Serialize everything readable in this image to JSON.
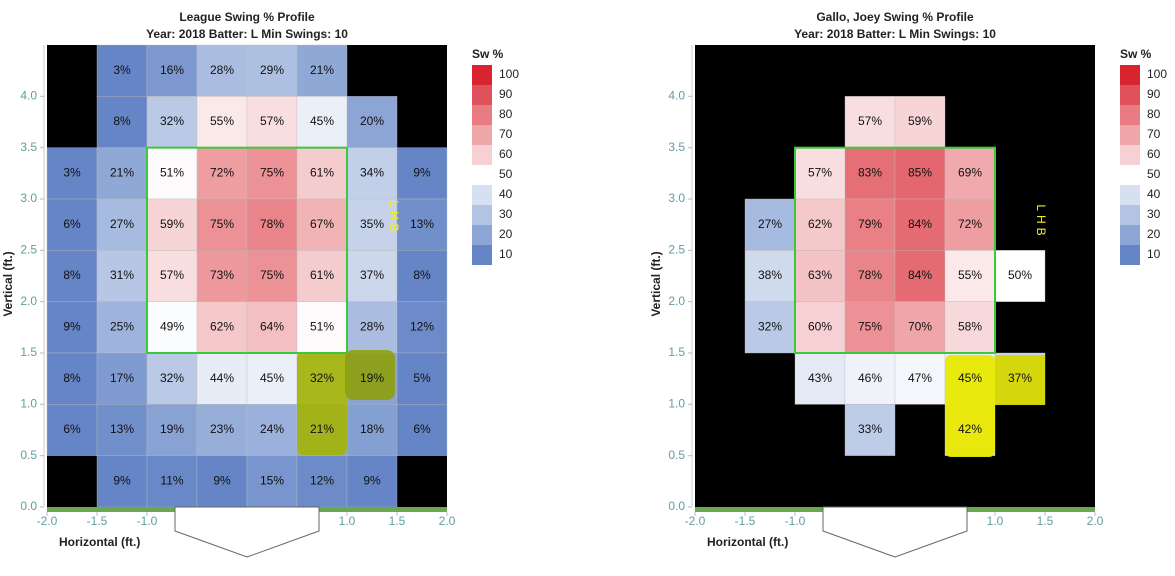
{
  "chart_data": [
    {
      "type": "heatmap",
      "title": "League Swing % Profile",
      "subtitle": "Year: 2018 Batter: L Min Swings: 10",
      "x_label": "Horizontal (ft.)",
      "y_label": "Vertical (ft.)",
      "xlim": [
        -2,
        2
      ],
      "ylim": [
        0,
        4.5
      ],
      "xticks": [
        {
          "value": -2,
          "label": "-2.0"
        },
        -1.5,
        {
          "value": -1,
          "label": "-1.0"
        },
        {
          "value": 1,
          "label": "1.0"
        },
        1.5,
        {
          "value": 2,
          "label": "2.0"
        }
      ],
      "yticks": [
        {
          "value": 0,
          "label": "0.0"
        },
        0.5,
        {
          "value": 1,
          "label": "1.0"
        },
        1.5,
        {
          "value": 2,
          "label": "2.0"
        },
        2.5,
        {
          "value": 3,
          "label": "3.0"
        },
        3.5,
        {
          "value": 4,
          "label": "4.0"
        }
      ],
      "x_edges": [
        -2,
        -1.5,
        -1,
        -0.5,
        0,
        0.5,
        1,
        1.5,
        2
      ],
      "y_edges": [
        4.5,
        4,
        3.5,
        3,
        2.5,
        2,
        1.5,
        1,
        0.5,
        0
      ],
      "values": [
        [
          null,
          3,
          16,
          28,
          29,
          21,
          null,
          null
        ],
        [
          null,
          8,
          32,
          55,
          57,
          45,
          20,
          null
        ],
        [
          3,
          21,
          51,
          72,
          75,
          61,
          34,
          9
        ],
        [
          6,
          27,
          59,
          75,
          78,
          67,
          35,
          13
        ],
        [
          8,
          31,
          57,
          73,
          75,
          61,
          37,
          8
        ],
        [
          9,
          25,
          49,
          62,
          64,
          51,
          28,
          12
        ],
        [
          8,
          17,
          32,
          44,
          45,
          32,
          19,
          5
        ],
        [
          6,
          13,
          19,
          23,
          24,
          21,
          18,
          6
        ],
        [
          null,
          9,
          11,
          9,
          15,
          12,
          9,
          null
        ]
      ],
      "value_labels": [
        [
          null,
          "3%",
          "16%",
          "28%",
          "29%",
          "21%",
          null,
          null
        ],
        [
          null,
          "8%",
          "32%",
          "55%",
          "57%",
          "45%",
          "20%",
          null
        ],
        [
          "3%",
          "21%",
          "51%",
          "72%",
          "75%",
          "61%",
          "34%",
          "9%"
        ],
        [
          "6%",
          "27%",
          "59%",
          "75%",
          "78%",
          "67%",
          "35%",
          "13%"
        ],
        [
          "8%",
          "31%",
          "57%",
          "73%",
          "75%",
          "61%",
          "37%",
          "8%"
        ],
        [
          "9%",
          "25%",
          "49%",
          "62%",
          "64%",
          "51%",
          "28%",
          "12%"
        ],
        [
          "8%",
          "17%",
          "32%",
          "44%",
          "45%",
          "32%",
          "19%",
          "5%"
        ],
        [
          "6%",
          "13%",
          "19%",
          "23%",
          "24%",
          "21%",
          "18%",
          "6%"
        ],
        [
          null,
          "9%",
          "11%",
          "9%",
          "15%",
          "12%",
          "9%",
          null
        ]
      ],
      "strike_zone": {
        "x": [
          -1,
          1
        ],
        "y": [
          1.5,
          3.5
        ],
        "color": "#3cc83c"
      },
      "annotation": "LHB",
      "background": "#000000",
      "colorbar": {
        "title": "Sw %",
        "ticks": [
          100,
          90,
          80,
          70,
          60,
          50,
          40,
          30,
          20,
          10
        ],
        "colors": [
          "#d9232e",
          "#e0525b",
          "#e87c82",
          "#efa6a9",
          "#f6d0d2",
          "#ffffff",
          "#d7e0f0",
          "#b2c3e3",
          "#8ca5d5",
          "#6585c6"
        ]
      }
    },
    {
      "type": "heatmap",
      "title": "Gallo, Joey Swing % Profile",
      "subtitle": "Year: 2018 Batter: L Min Swings: 10",
      "x_label": "Horizontal (ft.)",
      "y_label": "Vertical (ft.)",
      "xlim": [
        -2,
        2
      ],
      "ylim": [
        0,
        4.5
      ],
      "xticks": [
        {
          "value": -2,
          "label": "-2.0"
        },
        -1.5,
        {
          "value": -1,
          "label": "-1.0"
        },
        {
          "value": 1,
          "label": "1.0"
        },
        1.5,
        {
          "value": 2,
          "label": "2.0"
        }
      ],
      "yticks": [
        {
          "value": 0,
          "label": "0.0"
        },
        0.5,
        {
          "value": 1,
          "label": "1.0"
        },
        1.5,
        {
          "value": 2,
          "label": "2.0"
        },
        2.5,
        {
          "value": 3,
          "label": "3.0"
        },
        3.5,
        {
          "value": 4,
          "label": "4.0"
        }
      ],
      "x_edges": [
        -2,
        -1.5,
        -1,
        -0.5,
        0,
        0.5,
        1,
        1.5,
        2
      ],
      "y_edges": [
        4.5,
        4,
        3.5,
        3,
        2.5,
        2,
        1.5,
        1,
        0.5,
        0
      ],
      "values": [
        [
          null,
          null,
          null,
          null,
          null,
          null,
          null,
          null
        ],
        [
          null,
          null,
          null,
          57,
          59,
          null,
          null,
          null
        ],
        [
          null,
          null,
          57,
          83,
          85,
          69,
          null,
          null
        ],
        [
          null,
          27,
          62,
          79,
          84,
          72,
          null,
          null
        ],
        [
          null,
          38,
          63,
          78,
          84,
          55,
          50,
          null
        ],
        [
          null,
          32,
          60,
          75,
          70,
          58,
          null,
          null
        ],
        [
          null,
          null,
          43,
          46,
          47,
          45,
          37,
          null
        ],
        [
          null,
          null,
          null,
          33,
          null,
          42,
          null,
          null
        ],
        [
          null,
          null,
          null,
          null,
          null,
          null,
          null,
          null
        ]
      ],
      "value_labels": [
        [
          null,
          null,
          null,
          null,
          null,
          null,
          null,
          null
        ],
        [
          null,
          null,
          null,
          "57%",
          "59%",
          null,
          null,
          null
        ],
        [
          null,
          null,
          "57%",
          "83%",
          "85%",
          "69%",
          null,
          null
        ],
        [
          null,
          "27%",
          "62%",
          "79%",
          "84%",
          "72%",
          null,
          null
        ],
        [
          null,
          "38%",
          "63%",
          "78%",
          "84%",
          "55%",
          "50%",
          null
        ],
        [
          null,
          "32%",
          "60%",
          "75%",
          "70%",
          "58%",
          null,
          null
        ],
        [
          null,
          null,
          "43%",
          "46%",
          "47%",
          "45%",
          "37%",
          null
        ],
        [
          null,
          null,
          null,
          "33%",
          null,
          "42%",
          null,
          null
        ],
        [
          null,
          null,
          null,
          null,
          null,
          null,
          null,
          null
        ]
      ],
      "strike_zone": {
        "x": [
          -1,
          1
        ],
        "y": [
          1.5,
          3.5
        ],
        "color": "#3cc83c"
      },
      "annotation": "LHB",
      "background": "#000000",
      "colorbar": {
        "title": "Sw %",
        "ticks": [
          100,
          90,
          80,
          70,
          60,
          50,
          40,
          30,
          20,
          10
        ],
        "colors": [
          "#d9232e",
          "#e0525b",
          "#e87c82",
          "#efa6a9",
          "#f6d0d2",
          "#ffffff",
          "#d7e0f0",
          "#b2c3e3",
          "#8ca5d5",
          "#6585c6"
        ]
      }
    }
  ]
}
